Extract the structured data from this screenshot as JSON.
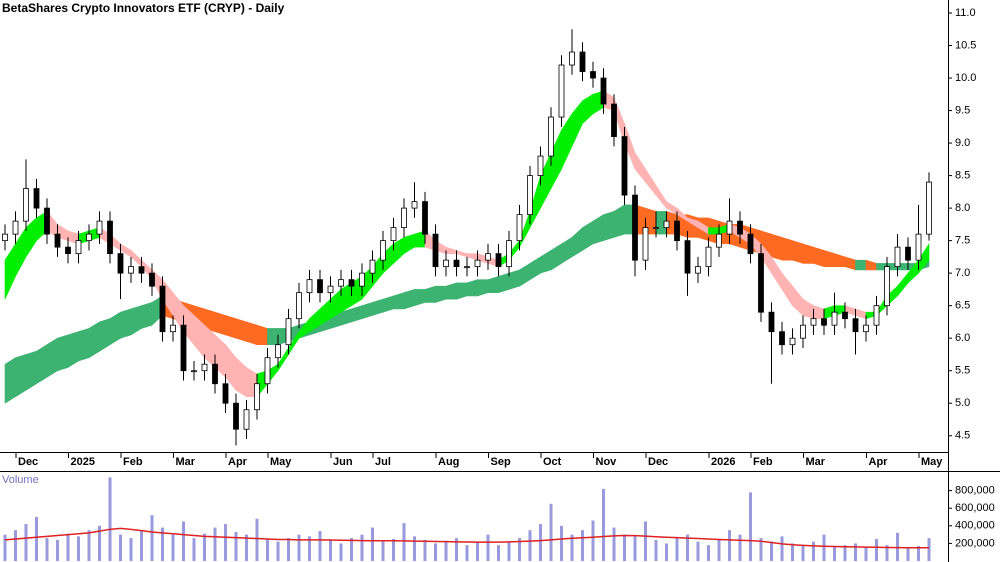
{
  "chart_data": [
    {
      "type": "candlestick",
      "title": "BetaShares Crypto Innovators ETF (CRYP) - Daily",
      "categories": [
        null,
        null,
        "Dec",
        null,
        null,
        null,
        null,
        "2025",
        null,
        null,
        null,
        null,
        "Feb",
        null,
        null,
        null,
        null,
        "Mar",
        null,
        null,
        null,
        null,
        "Apr",
        null,
        null,
        null,
        "May",
        null,
        null,
        null,
        null,
        null,
        "Jun",
        null,
        null,
        null,
        "Jul",
        null,
        null,
        null,
        null,
        null,
        "Aug",
        null,
        null,
        null,
        null,
        "Sep",
        null,
        null,
        null,
        null,
        "Oct",
        null,
        null,
        null,
        null,
        "Nov",
        null,
        null,
        null,
        null,
        "Dec",
        null,
        null,
        null,
        null,
        null,
        "2026",
        null,
        null,
        null,
        "Feb",
        null,
        null,
        null,
        null,
        "Mar",
        null,
        null,
        null,
        null,
        null,
        "Apr",
        null,
        null,
        null,
        null,
        "May"
      ],
      "open": [
        7.5,
        7.6,
        7.8,
        8.3,
        8.0,
        7.6,
        7.4,
        7.3,
        7.5,
        7.6,
        7.8,
        7.3,
        7.0,
        7.1,
        7.0,
        6.8,
        6.1,
        6.2,
        5.5,
        5.5,
        5.6,
        5.3,
        5.0,
        4.6,
        4.9,
        5.3,
        5.7,
        5.9,
        6.3,
        6.7,
        6.9,
        6.7,
        6.8,
        6.9,
        6.8,
        7.0,
        7.2,
        7.5,
        7.7,
        8.0,
        8.1,
        7.6,
        7.1,
        7.2,
        7.1,
        7.1,
        7.2,
        7.3,
        7.1,
        7.5,
        7.9,
        8.5,
        8.8,
        9.4,
        10.2,
        10.4,
        10.1,
        10.0,
        9.6,
        9.1,
        8.2,
        7.2,
        7.7,
        7.7,
        7.8,
        7.5,
        7.0,
        7.1,
        7.4,
        7.6,
        7.8,
        7.6,
        7.3,
        6.4,
        6.1,
        5.9,
        6.0,
        6.2,
        6.3,
        6.2,
        6.4,
        6.3,
        6.1,
        6.2,
        6.5,
        7.1,
        7.4,
        7.2,
        7.6
      ],
      "high": [
        7.75,
        7.95,
        8.75,
        8.45,
        8.15,
        7.75,
        7.55,
        7.65,
        7.75,
        7.95,
        7.95,
        7.45,
        7.25,
        7.25,
        7.15,
        6.95,
        6.35,
        6.35,
        5.65,
        5.75,
        5.75,
        5.45,
        5.15,
        5.05,
        5.45,
        5.85,
        6.05,
        6.45,
        6.85,
        7.05,
        7.05,
        6.95,
        7.05,
        7.05,
        7.15,
        7.35,
        7.65,
        7.85,
        8.15,
        8.4,
        8.25,
        7.75,
        7.35,
        7.35,
        7.25,
        7.35,
        7.45,
        7.45,
        7.65,
        8.05,
        8.65,
        8.95,
        9.55,
        10.35,
        10.75,
        10.55,
        10.25,
        10.15,
        9.75,
        9.25,
        8.35,
        7.85,
        7.95,
        7.95,
        7.95,
        7.65,
        7.25,
        7.55,
        7.75,
        8.15,
        7.95,
        7.75,
        7.45,
        6.55,
        6.25,
        6.15,
        6.35,
        6.45,
        6.45,
        6.7,
        6.55,
        6.45,
        6.35,
        6.65,
        7.25,
        7.6,
        7.55,
        8.05,
        8.55
      ],
      "low": [
        7.35,
        7.45,
        7.65,
        7.85,
        7.45,
        7.25,
        7.15,
        7.15,
        7.35,
        7.45,
        7.15,
        6.6,
        6.85,
        6.85,
        6.65,
        5.95,
        5.95,
        5.35,
        5.35,
        5.35,
        5.15,
        4.85,
        4.35,
        4.45,
        4.75,
        5.15,
        5.55,
        5.75,
        6.15,
        6.55,
        6.55,
        6.55,
        6.65,
        6.65,
        6.65,
        6.85,
        7.05,
        7.35,
        7.55,
        7.85,
        7.45,
        6.95,
        6.95,
        6.95,
        6.95,
        6.95,
        7.05,
        6.95,
        6.95,
        7.35,
        7.75,
        8.35,
        8.65,
        9.25,
        10.05,
        9.95,
        9.85,
        9.45,
        8.95,
        8.05,
        6.95,
        7.05,
        7.55,
        7.55,
        7.35,
        6.65,
        6.85,
        6.95,
        7.25,
        7.45,
        7.45,
        7.15,
        6.25,
        5.3,
        5.75,
        5.75,
        5.85,
        6.05,
        6.05,
        6.05,
        6.15,
        5.75,
        5.95,
        6.05,
        6.35,
        6.95,
        7.05,
        7.05,
        7.5
      ],
      "close": [
        7.6,
        7.8,
        8.3,
        8.0,
        7.6,
        7.4,
        7.3,
        7.5,
        7.6,
        7.8,
        7.3,
        7.0,
        7.1,
        7.0,
        6.8,
        6.1,
        6.2,
        5.5,
        5.5,
        5.6,
        5.3,
        5.0,
        4.6,
        4.9,
        5.3,
        5.7,
        5.9,
        6.3,
        6.7,
        6.9,
        6.7,
        6.8,
        6.9,
        6.8,
        7.0,
        7.2,
        7.5,
        7.7,
        8.0,
        8.1,
        7.6,
        7.1,
        7.2,
        7.1,
        7.1,
        7.2,
        7.3,
        7.1,
        7.5,
        7.9,
        8.5,
        8.8,
        9.4,
        10.2,
        10.4,
        10.1,
        10.0,
        9.6,
        9.1,
        8.2,
        7.2,
        7.7,
        7.7,
        7.8,
        7.5,
        7.0,
        7.1,
        7.4,
        7.6,
        7.8,
        7.6,
        7.3,
        6.4,
        6.1,
        5.9,
        6.0,
        6.2,
        6.3,
        6.2,
        6.4,
        6.3,
        6.1,
        6.2,
        6.5,
        7.1,
        7.4,
        7.2,
        7.6,
        8.4
      ],
      "up_color": "#ffffff",
      "down_color": "#000000",
      "outline_color": "#000000",
      "bands": [
        {
          "lower": [
            5.0,
            5.1,
            5.2,
            5.3,
            5.4,
            5.5,
            5.55,
            5.65,
            5.7,
            5.8,
            5.9,
            6.0,
            6.05,
            6.15,
            6.2,
            6.35,
            6.3,
            6.25,
            6.2,
            6.15,
            6.1,
            6.05,
            6.0,
            5.95,
            5.9,
            5.9,
            5.9,
            5.95,
            6.0,
            6.05,
            6.1,
            6.15,
            6.2,
            6.25,
            6.3,
            6.35,
            6.4,
            6.45,
            6.45,
            6.5,
            6.55,
            6.55,
            6.6,
            6.6,
            6.65,
            6.65,
            6.7,
            6.7,
            6.75,
            6.8,
            6.9,
            7.0,
            7.05,
            7.15,
            7.25,
            7.35,
            7.45,
            7.5,
            7.55,
            7.6,
            7.6,
            7.6,
            7.6,
            7.6,
            7.6,
            7.55,
            7.55,
            7.5,
            7.45,
            7.45,
            7.4,
            7.35,
            7.3,
            7.25,
            7.2,
            7.2,
            7.15,
            7.15,
            7.1,
            7.1,
            7.1,
            7.05,
            7.05,
            7.05,
            7.05,
            7.05,
            7.05,
            7.05,
            7.1
          ],
          "upper": [
            5.6,
            5.7,
            5.75,
            5.8,
            5.9,
            6.0,
            6.05,
            6.1,
            6.15,
            6.25,
            6.3,
            6.4,
            6.45,
            6.5,
            6.55,
            6.65,
            6.6,
            6.55,
            6.5,
            6.45,
            6.4,
            6.35,
            6.3,
            6.25,
            6.2,
            6.15,
            6.15,
            6.15,
            6.2,
            6.25,
            6.3,
            6.35,
            6.4,
            6.45,
            6.5,
            6.55,
            6.6,
            6.65,
            6.7,
            6.75,
            6.75,
            6.8,
            6.8,
            6.85,
            6.85,
            6.9,
            6.9,
            6.95,
            7.0,
            7.05,
            7.15,
            7.25,
            7.35,
            7.45,
            7.55,
            7.7,
            7.8,
            7.9,
            7.95,
            8.05,
            8.05,
            8.0,
            7.95,
            7.95,
            7.9,
            7.9,
            7.85,
            7.85,
            7.8,
            7.75,
            7.75,
            7.7,
            7.65,
            7.6,
            7.55,
            7.5,
            7.45,
            7.4,
            7.35,
            7.3,
            7.25,
            7.2,
            7.2,
            7.15,
            7.15,
            7.15,
            7.15,
            7.15,
            7.2
          ],
          "up_color": "#3cb371",
          "down_color": "#ff6a22"
        },
        {
          "lower": [
            6.6,
            6.95,
            7.25,
            7.5,
            7.65,
            7.55,
            7.5,
            7.45,
            7.5,
            7.55,
            7.45,
            7.35,
            7.25,
            7.1,
            6.9,
            6.6,
            6.35,
            6.1,
            5.9,
            5.7,
            5.55,
            5.4,
            5.2,
            5.1,
            5.1,
            5.3,
            5.5,
            5.75,
            6.0,
            6.1,
            6.2,
            6.3,
            6.4,
            6.5,
            6.6,
            6.8,
            7.0,
            7.15,
            7.3,
            7.4,
            7.4,
            7.35,
            7.3,
            7.3,
            7.25,
            7.2,
            7.15,
            7.1,
            7.2,
            7.4,
            7.7,
            8.0,
            8.3,
            8.6,
            8.95,
            9.3,
            9.45,
            9.55,
            9.5,
            9.0,
            8.6,
            8.4,
            8.2,
            8.0,
            7.9,
            7.8,
            7.7,
            7.6,
            7.6,
            7.65,
            7.55,
            7.45,
            7.25,
            7.0,
            6.75,
            6.5,
            6.35,
            6.3,
            6.3,
            6.35,
            6.4,
            6.35,
            6.3,
            6.35,
            6.5,
            6.65,
            6.85,
            7.0,
            7.2
          ],
          "upper": [
            7.2,
            7.45,
            7.7,
            7.85,
            7.95,
            7.75,
            7.65,
            7.6,
            7.65,
            7.7,
            7.6,
            7.45,
            7.35,
            7.2,
            7.05,
            6.9,
            6.7,
            6.5,
            6.35,
            6.2,
            6.05,
            5.9,
            5.7,
            5.55,
            5.45,
            5.5,
            5.6,
            5.85,
            6.1,
            6.3,
            6.45,
            6.6,
            6.75,
            6.85,
            6.95,
            7.1,
            7.3,
            7.45,
            7.55,
            7.6,
            7.65,
            7.5,
            7.4,
            7.35,
            7.3,
            7.3,
            7.25,
            7.2,
            7.3,
            7.5,
            7.95,
            8.5,
            8.85,
            9.2,
            9.45,
            9.65,
            9.75,
            9.8,
            9.7,
            9.3,
            8.85,
            8.6,
            8.35,
            8.1,
            8.0,
            7.85,
            7.8,
            7.7,
            7.7,
            7.75,
            7.7,
            7.6,
            7.45,
            7.25,
            7.0,
            6.8,
            6.6,
            6.5,
            6.45,
            6.5,
            6.5,
            6.45,
            6.4,
            6.4,
            6.65,
            6.8,
            7.0,
            7.2,
            7.45
          ],
          "up_color": "#00ee00",
          "down_color": "#ffb3b3"
        }
      ],
      "ylim": [
        4.25,
        11.2
      ],
      "yticks": [
        4.5,
        {
          "value": 5,
          "label": "5.0"
        },
        5.5,
        {
          "value": 6,
          "label": "6.0"
        },
        6.5,
        {
          "value": 7,
          "label": "7.0"
        },
        7.5,
        {
          "value": 8,
          "label": "8.0"
        },
        8.5,
        {
          "value": 9,
          "label": "9.0"
        },
        9.5,
        {
          "value": 10,
          "label": "10.0"
        },
        10.5,
        {
          "value": 11,
          "label": "11.0"
        }
      ]
    },
    {
      "type": "bar",
      "title": "Volume",
      "color": "#9999dd",
      "values": [
        300000,
        350000,
        420000,
        500000,
        260000,
        240000,
        310000,
        280000,
        350000,
        400000,
        950000,
        300000,
        260000,
        340000,
        520000,
        380000,
        300000,
        450000,
        260000,
        310000,
        380000,
        420000,
        330000,
        300000,
        480000,
        250000,
        220000,
        260000,
        300000,
        280000,
        340000,
        240000,
        200000,
        260000,
        300000,
        380000,
        220000,
        250000,
        430000,
        280000,
        240000,
        200000,
        230000,
        260000,
        180000,
        210000,
        300000,
        180000,
        220000,
        260000,
        350000,
        420000,
        650000,
        400000,
        300000,
        350000,
        460000,
        820000,
        380000,
        300000,
        280000,
        450000,
        240000,
        200000,
        260000,
        300000,
        220000,
        180000,
        240000,
        350000,
        300000,
        780000,
        260000,
        220000,
        280000,
        200000,
        180000,
        220000,
        300000,
        160000,
        180000,
        200000,
        160000,
        250000,
        180000,
        320000,
        150000,
        170000,
        260000
      ],
      "average": [
        240000,
        250000,
        260000,
        270000,
        280000,
        290000,
        300000,
        310000,
        320000,
        340000,
        360000,
        370000,
        360000,
        345000,
        330000,
        320000,
        310000,
        300000,
        290000,
        280000,
        275000,
        270000,
        265000,
        260000,
        255000,
        250000,
        245000,
        245000,
        240000,
        240000,
        240000,
        238000,
        236000,
        234000,
        232000,
        230000,
        230000,
        230000,
        228000,
        226000,
        225000,
        222000,
        220000,
        218000,
        216000,
        215000,
        215000,
        215000,
        218000,
        222000,
        226000,
        232000,
        240000,
        250000,
        258000,
        264000,
        270000,
        278000,
        286000,
        290000,
        288000,
        282000,
        276000,
        270000,
        265000,
        260000,
        255000,
        250000,
        245000,
        240000,
        236000,
        232000,
        225000,
        210000,
        195000,
        185000,
        178000,
        172000,
        168000,
        165000,
        162000,
        160000,
        158000,
        156000,
        154000,
        152000,
        150000,
        150000,
        150000
      ],
      "average_color": "#dd2222",
      "ylim": [
        0,
        1000000
      ],
      "yticks": [
        {
          "value": 200000,
          "label": "200,000"
        },
        {
          "value": 400000,
          "label": "400,000"
        },
        {
          "value": 600000,
          "label": "600,000"
        },
        {
          "value": 800000,
          "label": "800,000"
        }
      ]
    }
  ]
}
